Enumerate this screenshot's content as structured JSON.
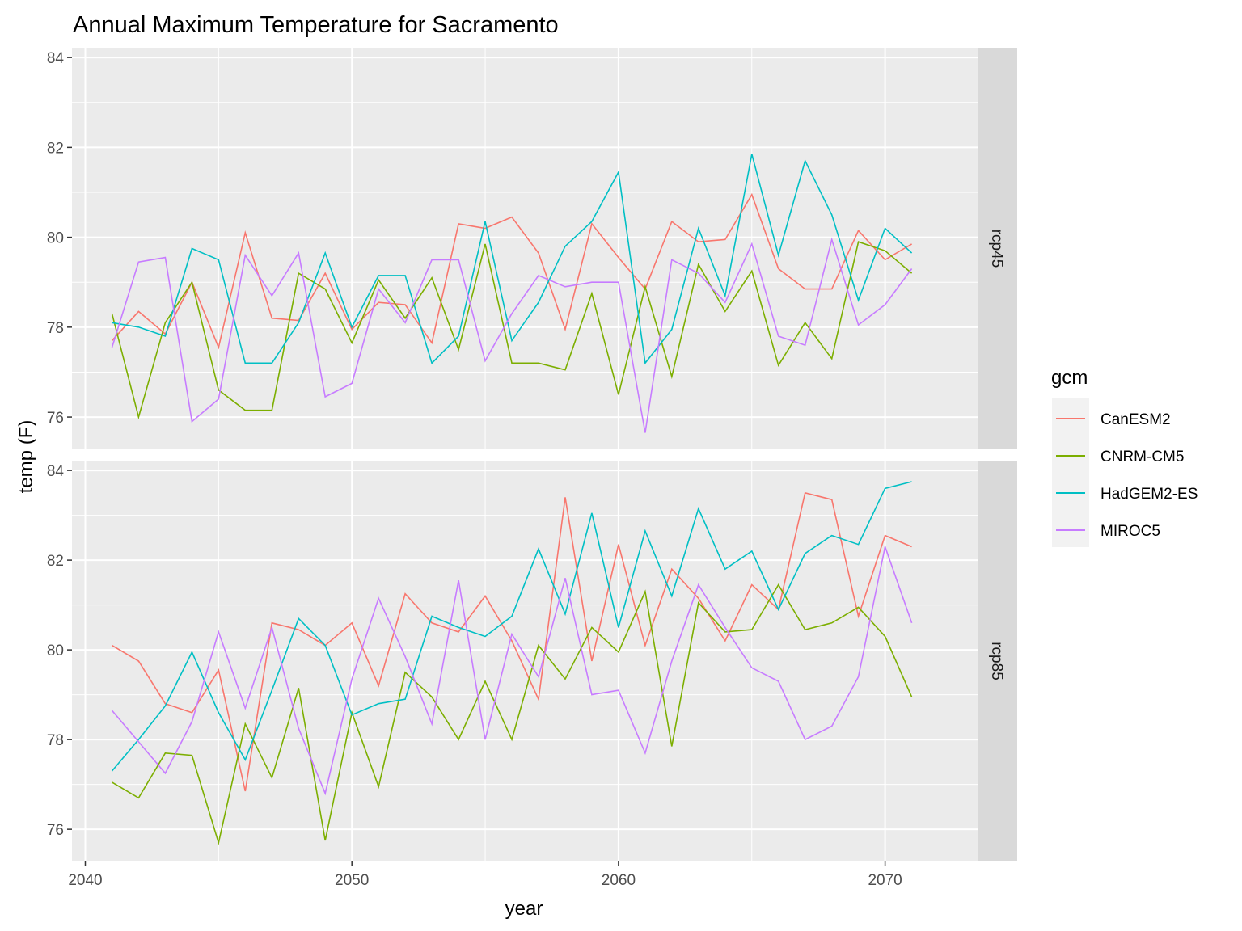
{
  "chart_data": {
    "type": "line",
    "title": "Annual Maximum Temperature for Sacramento",
    "xlabel": "year",
    "ylabel": "temp (F)",
    "xlim": [
      2039.5,
      2073.5
    ],
    "ylim": [
      75.3,
      84.2
    ],
    "x_ticks": [
      2040,
      2050,
      2060,
      2070
    ],
    "x_tick_labels": [
      "2040",
      "2050",
      "2060",
      "2070"
    ],
    "y_ticks": [
      76,
      78,
      80,
      82,
      84
    ],
    "y_tick_labels": [
      "76",
      "78",
      "80",
      "82",
      "84"
    ],
    "grid": true,
    "legend": {
      "title": "gcm",
      "position": "right",
      "entries": [
        "CanESM2",
        "CNRM-CM5",
        "HadGEM2-ES",
        "MIROC5"
      ]
    },
    "colors": {
      "CanESM2": "#F8766D",
      "CNRM-CM5": "#7CAE00",
      "HadGEM2-ES": "#00BFC4",
      "MIROC5": "#C77CFF"
    },
    "x": [
      2041,
      2042,
      2043,
      2044,
      2045,
      2046,
      2047,
      2048,
      2049,
      2050,
      2051,
      2052,
      2053,
      2054,
      2055,
      2056,
      2057,
      2058,
      2059,
      2060,
      2061,
      2062,
      2063,
      2064,
      2065,
      2066,
      2067,
      2068,
      2069,
      2070,
      2071
    ],
    "facets": [
      {
        "label": "rcp45",
        "series": [
          {
            "name": "CanESM2",
            "values": [
              77.7,
              78.35,
              77.85,
              79.0,
              77.55,
              80.1,
              78.2,
              78.15,
              79.2,
              77.95,
              78.55,
              78.5,
              77.65,
              80.3,
              80.2,
              80.45,
              79.65,
              77.95,
              80.3,
              79.55,
              78.85,
              80.35,
              79.9,
              79.95,
              80.95,
              79.3,
              78.85,
              78.85,
              80.15,
              79.5,
              79.85
            ]
          },
          {
            "name": "CNRM-CM5",
            "values": [
              78.3,
              76.0,
              78.1,
              79.0,
              76.6,
              76.15,
              76.15,
              79.2,
              78.85,
              77.65,
              79.05,
              78.2,
              79.1,
              77.5,
              79.85,
              77.2,
              77.2,
              77.05,
              78.75,
              76.5,
              78.9,
              76.9,
              79.4,
              78.35,
              79.25,
              77.15,
              78.1,
              77.3,
              79.9,
              79.7,
              79.2
            ]
          },
          {
            "name": "HadGEM2-ES",
            "values": [
              78.1,
              78.0,
              77.8,
              79.75,
              79.5,
              77.2,
              77.2,
              78.1,
              79.65,
              78.0,
              79.15,
              79.15,
              77.2,
              77.8,
              80.35,
              77.7,
              78.55,
              79.8,
              80.35,
              81.45,
              77.2,
              77.95,
              80.2,
              78.7,
              81.85,
              79.6,
              81.7,
              80.5,
              78.6,
              80.2,
              79.65
            ]
          },
          {
            "name": "MIROC5",
            "values": [
              77.55,
              79.45,
              79.55,
              75.9,
              76.4,
              79.6,
              78.7,
              79.65,
              76.45,
              76.75,
              78.85,
              78.1,
              79.5,
              79.5,
              77.25,
              78.3,
              79.15,
              78.9,
              79.0,
              79.0,
              75.65,
              79.5,
              79.2,
              78.55,
              79.85,
              77.8,
              77.6,
              79.95,
              78.05,
              78.5,
              79.3
            ]
          }
        ]
      },
      {
        "label": "rcp85",
        "series": [
          {
            "name": "CanESM2",
            "values": [
              80.1,
              79.75,
              78.8,
              78.6,
              79.55,
              76.85,
              80.6,
              80.45,
              80.1,
              80.6,
              79.2,
              81.25,
              80.6,
              80.4,
              81.2,
              80.2,
              78.9,
              83.4,
              79.75,
              82.35,
              80.1,
              81.8,
              81.15,
              80.2,
              81.45,
              80.9,
              83.5,
              83.35,
              80.75,
              82.55,
              82.3
            ]
          },
          {
            "name": "CNRM-CM5",
            "values": [
              77.05,
              76.7,
              77.7,
              77.65,
              75.7,
              78.35,
              77.15,
              79.15,
              75.75,
              78.6,
              76.95,
              79.5,
              78.95,
              78.0,
              79.3,
              78.0,
              80.1,
              79.35,
              80.5,
              79.95,
              81.3,
              77.85,
              81.05,
              80.4,
              80.45,
              81.45,
              80.45,
              80.6,
              80.95,
              80.3,
              78.95
            ]
          },
          {
            "name": "HadGEM2-ES",
            "values": [
              77.3,
              78.0,
              78.75,
              79.95,
              78.6,
              77.55,
              79.1,
              80.7,
              80.1,
              78.55,
              78.8,
              78.9,
              80.75,
              80.5,
              80.3,
              80.75,
              82.25,
              80.8,
              83.05,
              80.5,
              82.65,
              81.2,
              83.15,
              81.8,
              82.2,
              80.9,
              82.15,
              82.55,
              82.35,
              83.6,
              83.75
            ]
          },
          {
            "name": "MIROC5",
            "values": [
              78.65,
              77.95,
              77.25,
              78.4,
              80.4,
              78.7,
              80.5,
              78.25,
              76.8,
              79.35,
              81.15,
              79.85,
              78.35,
              81.55,
              78.0,
              80.35,
              79.4,
              81.6,
              79.0,
              79.1,
              77.7,
              79.75,
              81.45,
              80.5,
              79.6,
              79.3,
              78.0,
              78.3,
              79.4,
              82.3,
              80.6
            ]
          }
        ]
      }
    ]
  }
}
